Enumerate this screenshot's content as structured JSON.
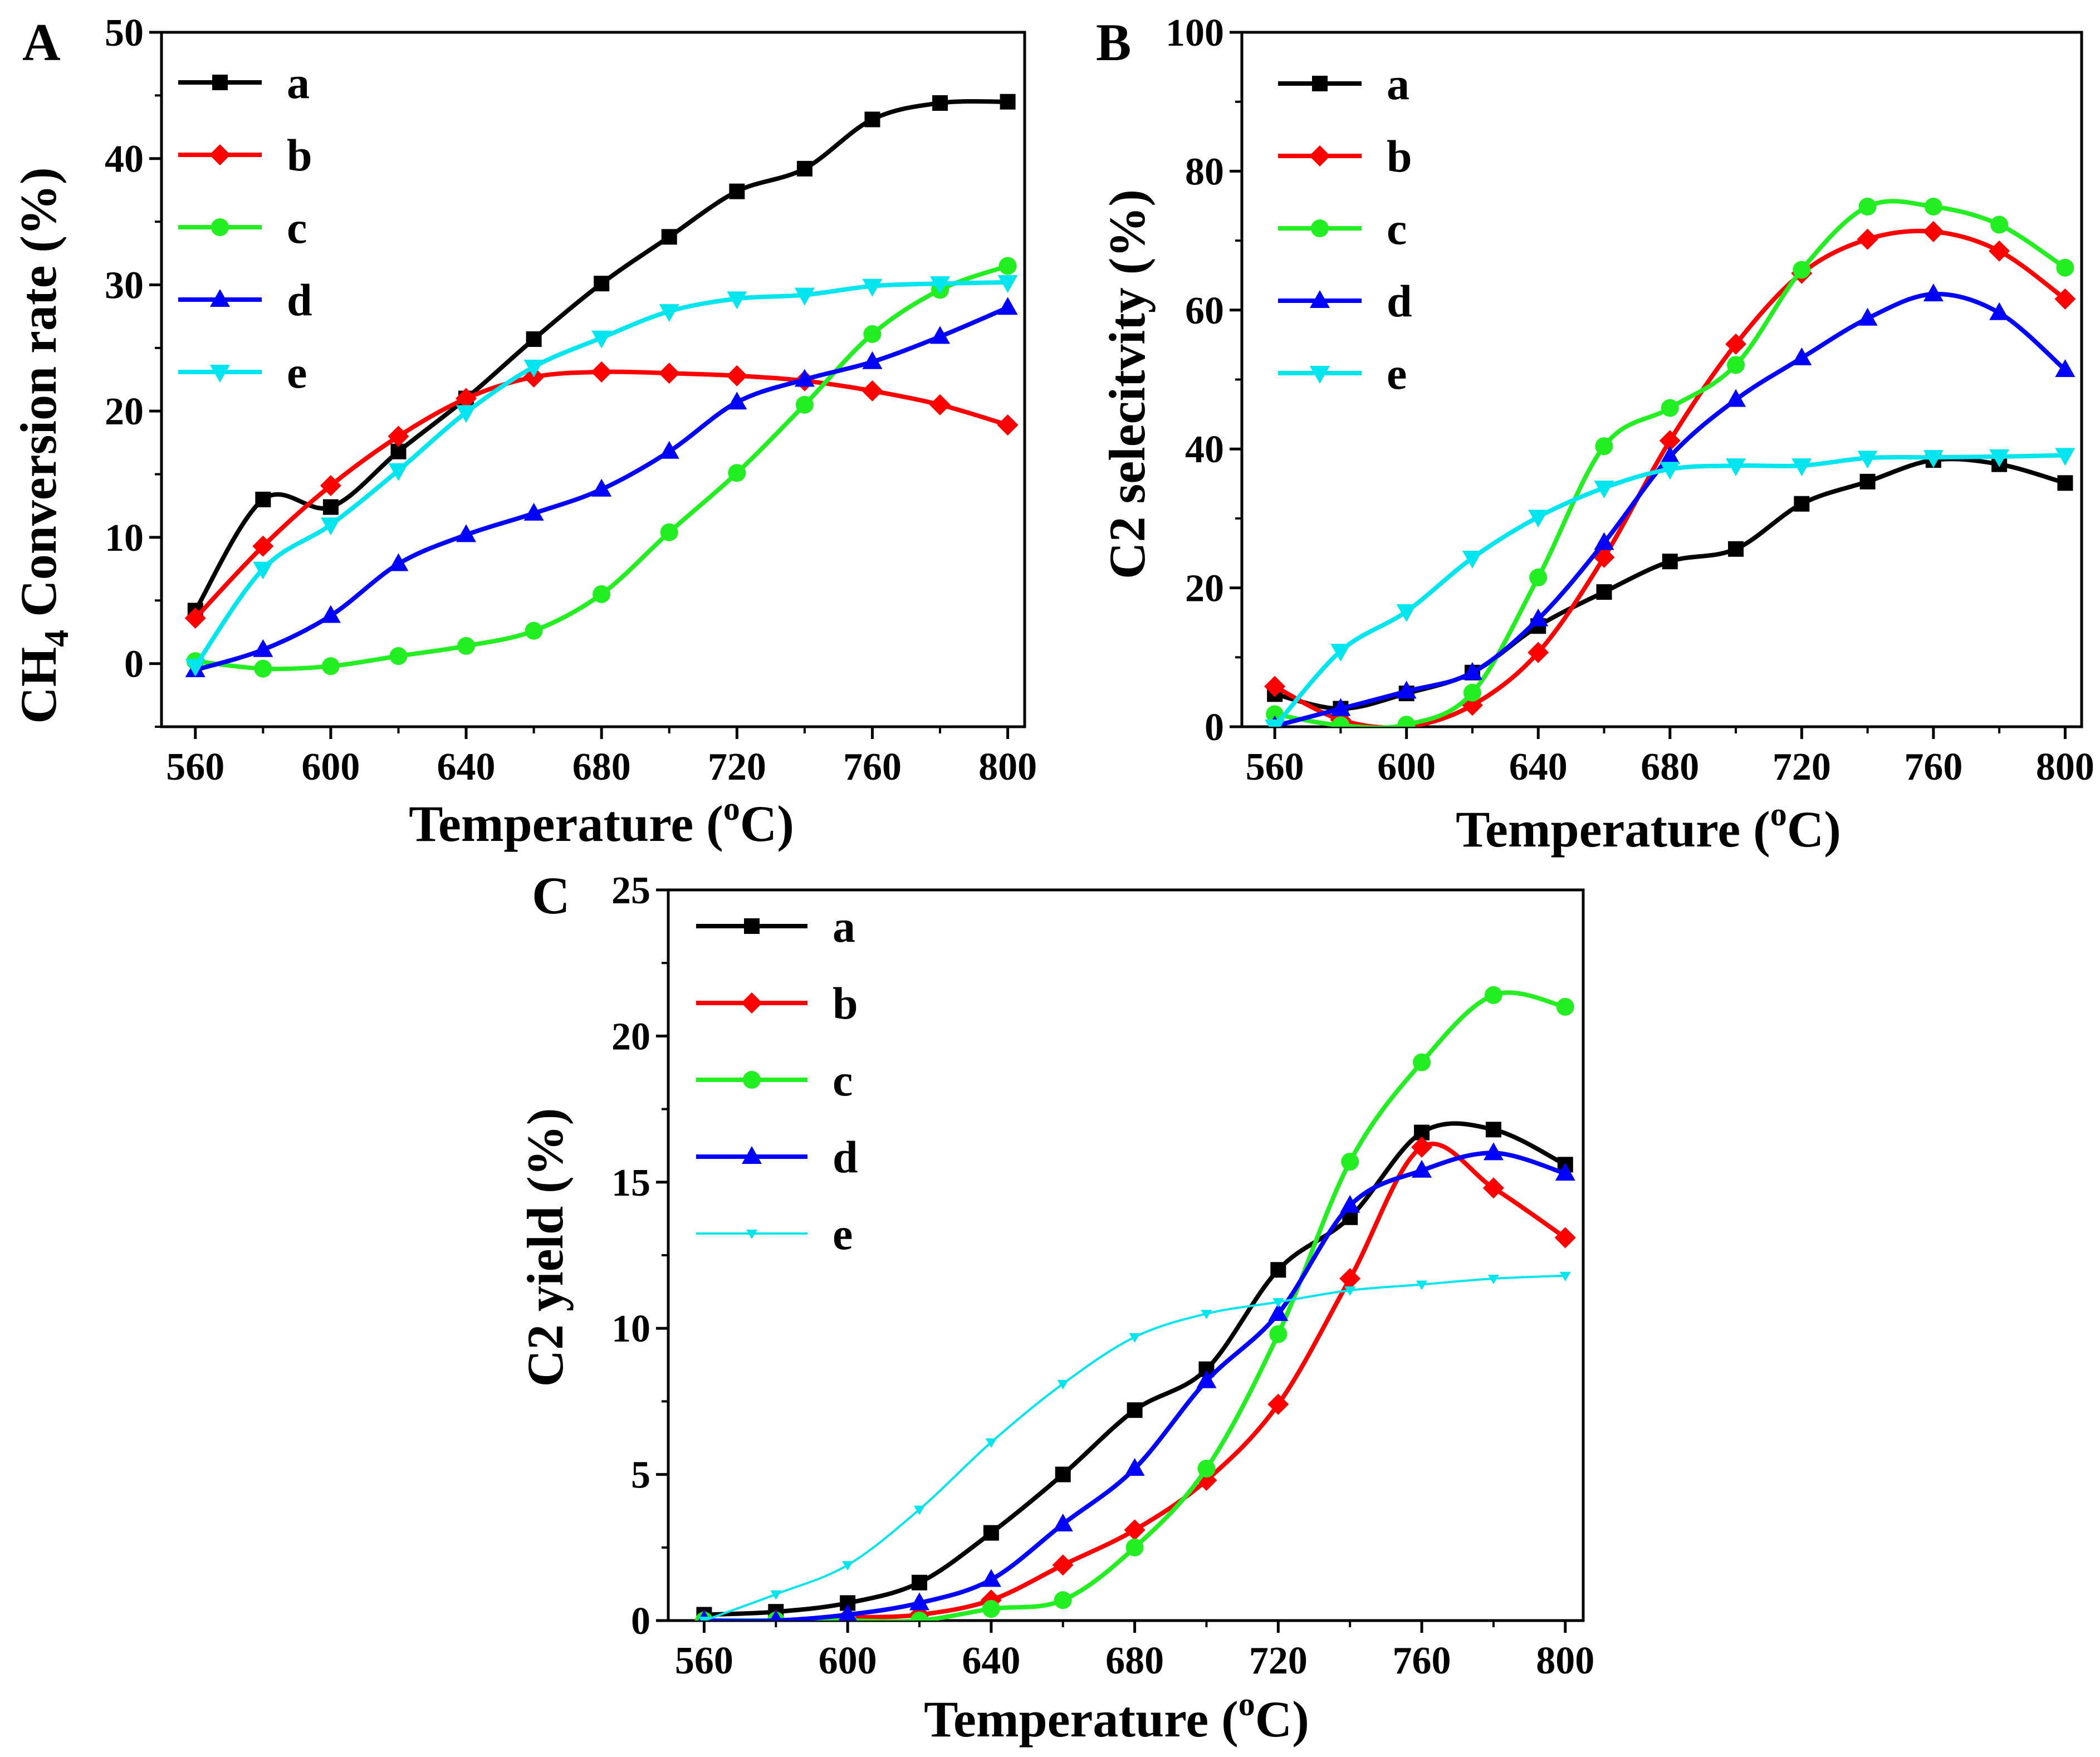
{
  "figure": {
    "colors": {
      "a": "#000000",
      "b": "#ff0000",
      "c": "#22ee22",
      "d": "#0000ff",
      "e": "#00e5ee"
    }
  },
  "chart_data": [
    {
      "panel": "A",
      "type": "line",
      "xlabel": "Temperature (oC)",
      "xlabel_parts": {
        "main": "Temperature (",
        "sup": "o",
        "tail": "C)"
      },
      "ylabel": "CH4 Conversion rate (%)",
      "ylabel_parts": {
        "main": "CH",
        "sub": "4",
        "tail": " Conversion rate (%)"
      },
      "xlim": [
        550,
        805
      ],
      "ylim": [
        -5,
        50
      ],
      "xticks": [
        560,
        600,
        640,
        680,
        720,
        760,
        800
      ],
      "yticks": [
        0,
        10,
        20,
        30,
        40,
        50
      ],
      "legend": "top-left",
      "x": [
        560,
        580,
        600,
        620,
        640,
        660,
        680,
        700,
        720,
        740,
        760,
        780,
        800
      ],
      "series": [
        {
          "name": "a",
          "marker": "square",
          "values": [
            4.2,
            13.0,
            12.4,
            16.8,
            21.0,
            25.7,
            30.1,
            33.8,
            37.4,
            39.2,
            43.1,
            44.4,
            44.5
          ]
        },
        {
          "name": "b",
          "marker": "diamond",
          "values": [
            3.6,
            9.3,
            14.1,
            18.0,
            21.0,
            22.7,
            23.1,
            23.0,
            22.8,
            22.4,
            21.6,
            20.5,
            18.9
          ]
        },
        {
          "name": "c",
          "marker": "circle",
          "values": [
            0.2,
            -0.4,
            -0.2,
            0.6,
            1.4,
            2.6,
            5.5,
            10.4,
            15.1,
            20.5,
            26.1,
            29.6,
            31.5
          ]
        },
        {
          "name": "d",
          "marker": "triangle-up",
          "values": [
            -0.5,
            1.1,
            3.8,
            7.9,
            10.2,
            11.9,
            13.8,
            16.8,
            20.7,
            22.5,
            23.9,
            25.9,
            28.2
          ]
        },
        {
          "name": "e",
          "marker": "triangle-down",
          "values": [
            -0.2,
            7.5,
            11.0,
            15.3,
            19.9,
            23.5,
            25.8,
            27.9,
            28.9,
            29.2,
            29.9,
            30.1,
            30.2
          ]
        }
      ]
    },
    {
      "panel": "B",
      "type": "line",
      "xlabel": "Temperature (oC)",
      "xlabel_parts": {
        "main": "Temperature (",
        "sup": "o",
        "tail": "C)"
      },
      "ylabel": "C2 selecitvity (%)",
      "xlim": [
        550,
        805
      ],
      "ylim": [
        0,
        100
      ],
      "xticks": [
        560,
        600,
        640,
        680,
        720,
        760,
        800
      ],
      "yticks": [
        0,
        20,
        40,
        60,
        80,
        100
      ],
      "legend": "top-left",
      "x": [
        560,
        580,
        600,
        620,
        640,
        660,
        680,
        700,
        720,
        740,
        760,
        780,
        800
      ],
      "series": [
        {
          "name": "a",
          "marker": "square",
          "values": [
            4.7,
            2.6,
            4.8,
            7.8,
            14.5,
            19.4,
            23.8,
            25.6,
            32.1,
            35.3,
            38.4,
            37.8,
            35.1
          ]
        },
        {
          "name": "b",
          "marker": "diamond",
          "values": [
            5.8,
            1.0,
            0.0,
            3.1,
            10.7,
            24.4,
            41.2,
            55.1,
            65.3,
            70.2,
            71.3,
            68.5,
            61.6
          ]
        },
        {
          "name": "c",
          "marker": "circle",
          "values": [
            1.8,
            0.2,
            0.3,
            4.9,
            21.5,
            40.4,
            45.9,
            52.1,
            65.8,
            74.9,
            74.9,
            72.3,
            66.1
          ]
        },
        {
          "name": "d",
          "marker": "triangle-up",
          "values": [
            0.1,
            2.6,
            5.1,
            7.8,
            15.5,
            26.5,
            38.9,
            47.1,
            53.1,
            58.8,
            62.3,
            59.6,
            51.4
          ]
        },
        {
          "name": "e",
          "marker": "triangle-down",
          "values": [
            0.0,
            10.9,
            16.6,
            24.3,
            30.2,
            34.4,
            37.1,
            37.6,
            37.6,
            38.7,
            38.8,
            38.9,
            39.1
          ]
        }
      ]
    },
    {
      "panel": "C",
      "type": "line",
      "xlabel": "Temperature (oC)",
      "xlabel_parts": {
        "main": "Temperature (",
        "sup": "o",
        "tail": "C)"
      },
      "ylabel": "C2 yield (%)",
      "xlim": [
        550,
        805
      ],
      "ylim": [
        0,
        25
      ],
      "xticks": [
        560,
        600,
        640,
        680,
        720,
        760,
        800
      ],
      "yticks": [
        0,
        5,
        10,
        15,
        20,
        25
      ],
      "legend": "top-left",
      "x": [
        560,
        580,
        600,
        620,
        640,
        660,
        680,
        700,
        720,
        740,
        760,
        780,
        800
      ],
      "series": [
        {
          "name": "a",
          "marker": "square",
          "values": [
            0.2,
            0.3,
            0.6,
            1.3,
            3.0,
            5.0,
            7.2,
            8.6,
            12.0,
            13.8,
            16.7,
            16.8,
            15.6
          ]
        },
        {
          "name": "b",
          "marker": "diamond",
          "values": [
            0.0,
            0.0,
            0.1,
            0.2,
            0.7,
            1.9,
            3.1,
            4.8,
            7.4,
            11.7,
            16.2,
            14.8,
            13.1
          ]
        },
        {
          "name": "c",
          "marker": "circle",
          "values": [
            0.0,
            0.0,
            0.0,
            0.0,
            0.4,
            0.7,
            2.5,
            5.2,
            9.8,
            15.7,
            19.1,
            21.4,
            21.0
          ]
        },
        {
          "name": "d",
          "marker": "triangle-up",
          "values": [
            0.0,
            0.0,
            0.2,
            0.6,
            1.4,
            3.3,
            5.2,
            8.2,
            10.5,
            14.2,
            15.4,
            16.0,
            15.3
          ]
        },
        {
          "name": "e",
          "marker": "tri-small",
          "values": [
            0.0,
            0.9,
            1.9,
            3.8,
            6.1,
            8.1,
            9.7,
            10.5,
            10.9,
            11.3,
            11.5,
            11.7,
            11.8
          ]
        }
      ]
    }
  ]
}
